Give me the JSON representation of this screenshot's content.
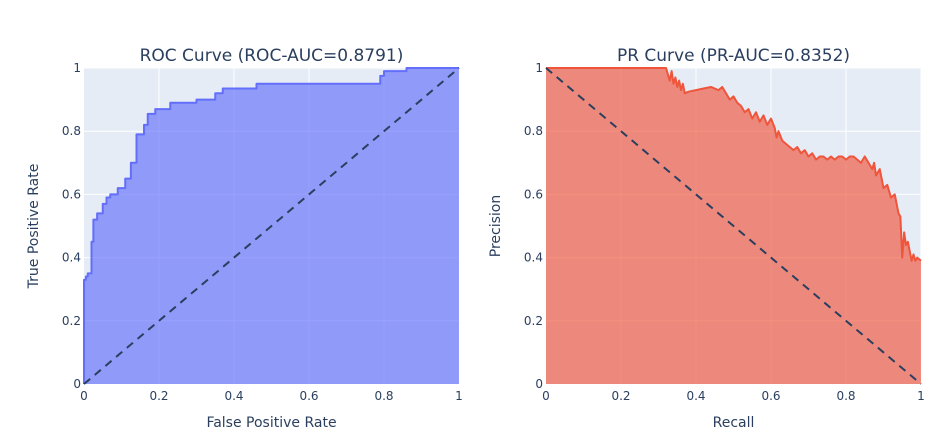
{
  "chart_data": [
    {
      "type": "area",
      "title": "ROC Curve (ROC-AUC=0.8791)",
      "xlabel": "False Positive Rate",
      "ylabel": "True Positive Rate",
      "xlim": [
        0,
        1
      ],
      "ylim": [
        0,
        1
      ],
      "xticks": [
        0,
        0.2,
        0.4,
        0.6,
        0.8,
        1
      ],
      "xtick_labels": [
        "0",
        "0.2",
        "0.4",
        "0.6",
        "0.8",
        "1"
      ],
      "yticks": [
        0,
        0.2,
        0.4,
        0.6,
        0.8,
        1
      ],
      "ytick_labels": [
        "0",
        "0.2",
        "0.4",
        "0.6",
        "0.8",
        "1"
      ],
      "grid": true,
      "fill_color": "#636efa",
      "line_color": "#636efa",
      "baseline": {
        "style": "dashed",
        "color": "#2a3f5f",
        "points": [
          [
            0,
            0
          ],
          [
            1,
            1
          ]
        ]
      },
      "series": [
        {
          "name": "ROC",
          "x": [
            0,
            0,
            0.005,
            0.005,
            0.01,
            0.01,
            0.02,
            0.02,
            0.025,
            0.025,
            0.035,
            0.035,
            0.05,
            0.05,
            0.06,
            0.06,
            0.07,
            0.07,
            0.09,
            0.09,
            0.11,
            0.11,
            0.125,
            0.125,
            0.14,
            0.14,
            0.16,
            0.16,
            0.17,
            0.17,
            0.19,
            0.19,
            0.23,
            0.23,
            0.3,
            0.3,
            0.35,
            0.35,
            0.37,
            0.37,
            0.46,
            0.46,
            0.57,
            0.57,
            0.79,
            0.79,
            0.8,
            0.8,
            0.86,
            0.86,
            1
          ],
          "y": [
            0,
            0.33,
            0.33,
            0.34,
            0.34,
            0.35,
            0.35,
            0.45,
            0.45,
            0.52,
            0.52,
            0.54,
            0.54,
            0.57,
            0.57,
            0.59,
            0.59,
            0.6,
            0.6,
            0.62,
            0.62,
            0.65,
            0.65,
            0.7,
            0.7,
            0.79,
            0.79,
            0.82,
            0.82,
            0.855,
            0.855,
            0.87,
            0.87,
            0.89,
            0.89,
            0.9,
            0.9,
            0.92,
            0.92,
            0.935,
            0.935,
            0.95,
            0.95,
            0.95,
            0.95,
            0.975,
            0.975,
            0.99,
            0.99,
            1,
            1
          ]
        }
      ]
    },
    {
      "type": "area",
      "title": "PR Curve (PR-AUC=0.8352)",
      "xlabel": "Recall",
      "ylabel": "Precision",
      "xlim": [
        0,
        1
      ],
      "ylim": [
        0,
        1
      ],
      "xticks": [
        0,
        0.2,
        0.4,
        0.6,
        0.8,
        1
      ],
      "xtick_labels": [
        "0",
        "0.2",
        "0.4",
        "0.6",
        "0.8",
        "1"
      ],
      "yticks": [
        0,
        0.2,
        0.4,
        0.6,
        0.8,
        1
      ],
      "ytick_labels": [
        "0",
        "0.2",
        "0.4",
        "0.6",
        "0.8",
        "1"
      ],
      "grid": true,
      "fill_color": "#ef553b",
      "line_color": "#ef553b",
      "baseline": {
        "style": "dashed",
        "color": "#2a3f5f",
        "points": [
          [
            0,
            1
          ],
          [
            1,
            0
          ]
        ]
      },
      "series": [
        {
          "name": "PR",
          "x": [
            0,
            0.32,
            0.33,
            0.335,
            0.34,
            0.345,
            0.35,
            0.355,
            0.36,
            0.365,
            0.37,
            0.38,
            0.4,
            0.42,
            0.44,
            0.46,
            0.47,
            0.48,
            0.49,
            0.5,
            0.51,
            0.52,
            0.53,
            0.54,
            0.55,
            0.56,
            0.57,
            0.58,
            0.59,
            0.6,
            0.61,
            0.615,
            0.62,
            0.63,
            0.64,
            0.65,
            0.66,
            0.67,
            0.68,
            0.69,
            0.7,
            0.71,
            0.72,
            0.73,
            0.74,
            0.75,
            0.76,
            0.77,
            0.78,
            0.79,
            0.8,
            0.81,
            0.82,
            0.83,
            0.84,
            0.85,
            0.86,
            0.87,
            0.875,
            0.88,
            0.89,
            0.9,
            0.91,
            0.92,
            0.93,
            0.94,
            0.945,
            0.95,
            0.955,
            0.96,
            0.965,
            0.97,
            0.975,
            0.98,
            0.985,
            0.99,
            1
          ],
          "y": [
            1,
            1,
            0.96,
            0.99,
            0.95,
            0.97,
            0.94,
            0.96,
            0.93,
            0.95,
            0.92,
            0.925,
            0.93,
            0.935,
            0.94,
            0.93,
            0.94,
            0.92,
            0.9,
            0.91,
            0.89,
            0.88,
            0.86,
            0.87,
            0.84,
            0.86,
            0.83,
            0.85,
            0.82,
            0.84,
            0.81,
            0.78,
            0.8,
            0.77,
            0.76,
            0.75,
            0.74,
            0.75,
            0.73,
            0.74,
            0.72,
            0.73,
            0.71,
            0.72,
            0.72,
            0.71,
            0.72,
            0.71,
            0.72,
            0.72,
            0.71,
            0.72,
            0.72,
            0.71,
            0.7,
            0.72,
            0.7,
            0.68,
            0.7,
            0.66,
            0.68,
            0.62,
            0.63,
            0.59,
            0.6,
            0.54,
            0.53,
            0.4,
            0.48,
            0.44,
            0.45,
            0.42,
            0.39,
            0.41,
            0.39,
            0.4,
            0.39
          ]
        }
      ]
    }
  ]
}
